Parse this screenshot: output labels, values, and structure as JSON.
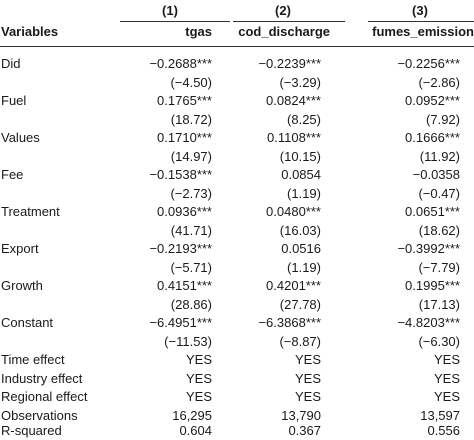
{
  "header": {
    "variables_label": "Variables",
    "columns": [
      {
        "number": "(1)",
        "name": "tgas"
      },
      {
        "number": "(2)",
        "name": "cod_discharge"
      },
      {
        "number": "(3)",
        "name": "fumes_emission"
      }
    ]
  },
  "rows": [
    {
      "label": "Did",
      "values": [
        "−0.2688***",
        "−0.2239***",
        "−0.2256***"
      ]
    },
    {
      "label": "",
      "values": [
        "(−4.50)",
        "(−3.29)",
        "(−2.86)"
      ]
    },
    {
      "label": "Fuel",
      "values": [
        "0.1765***",
        "0.0824***",
        "0.0952***"
      ]
    },
    {
      "label": "",
      "values": [
        "(18.72)",
        "(8.25)",
        "(7.92)"
      ]
    },
    {
      "label": "Values",
      "values": [
        "0.1710***",
        "0.1108***",
        "0.1666***"
      ]
    },
    {
      "label": "",
      "values": [
        "(14.97)",
        "(10.15)",
        "(11.92)"
      ]
    },
    {
      "label": "Fee",
      "values": [
        "−0.1538***",
        "0.0854",
        "−0.0358"
      ]
    },
    {
      "label": "",
      "values": [
        "(−2.73)",
        "(1.19)",
        "(−0.47)"
      ]
    },
    {
      "label": "Treatment",
      "values": [
        "0.0936***",
        "0.0480***",
        "0.0651***"
      ]
    },
    {
      "label": "",
      "values": [
        "(41.71)",
        "(16.03)",
        "(18.62)"
      ]
    },
    {
      "label": "Export",
      "values": [
        "−0.2193***",
        "0.0516",
        "−0.3992***"
      ]
    },
    {
      "label": "",
      "values": [
        "(−5.71)",
        "(1.19)",
        "(−7.79)"
      ]
    },
    {
      "label": "Growth",
      "values": [
        "0.4151***",
        "0.4201***",
        "0.1995***"
      ]
    },
    {
      "label": "",
      "values": [
        "(28.86)",
        "(27.78)",
        "(17.13)"
      ]
    },
    {
      "label": "Constant",
      "values": [
        "−6.4951***",
        "−6.3868***",
        "−4.8203***"
      ]
    },
    {
      "label": "",
      "values": [
        "(−11.53)",
        "(−8.87)",
        "(−6.30)"
      ]
    },
    {
      "label": "Time effect",
      "values": [
        "YES",
        "YES",
        "YES"
      ]
    },
    {
      "label": "Industry effect",
      "values": [
        "YES",
        "YES",
        "YES"
      ]
    },
    {
      "label": "Regional effect",
      "values": [
        "YES",
        "YES",
        "YES"
      ]
    },
    {
      "label": "Observations",
      "values": [
        "16,295",
        "13,790",
        "13,597"
      ]
    },
    {
      "label": "R-squared",
      "values": [
        "0.604",
        "0.367",
        "0.556"
      ]
    }
  ]
}
